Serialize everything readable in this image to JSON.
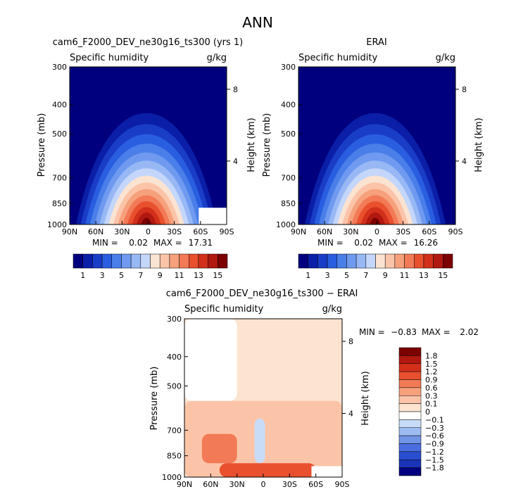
{
  "title": "ANN",
  "chart_data": [
    {
      "type": "heatmap",
      "title": "cam6_F2000_DEV_ne30g16_ts300 (yrs 1)",
      "left_label": "Specific humidity",
      "units": "g/kg",
      "ylabel": "Pressure (mb)",
      "y2label": "Height (km)",
      "x_ticks": [
        "90N",
        "60N",
        "30N",
        "0",
        "30S",
        "60S",
        "90S"
      ],
      "y_ticks": [
        "300",
        "400",
        "500",
        "700",
        "850",
        "1000"
      ],
      "y2_ticks": [
        "8",
        "4"
      ],
      "stats": {
        "min_label": "MIN =",
        "min": "0.02",
        "max_label": "MAX =",
        "max": "17.31"
      },
      "levels": [
        "1",
        "3",
        "5",
        "7",
        "9",
        "11",
        "13",
        "15"
      ],
      "colors": [
        "#00007e",
        "#0a1ea8",
        "#1a3dc8",
        "#2a5ee0",
        "#4a7ee8",
        "#6f9af0",
        "#98b8f5",
        "#c4d6fa",
        "#fbe3d2",
        "#fbc4a8",
        "#f6a07c",
        "#f27a56",
        "#e8502e",
        "#d2301a",
        "#b01810",
        "#7c0000"
      ],
      "peak": [
        2,
        15.5
      ]
    },
    {
      "type": "heatmap",
      "title": "ERAI",
      "left_label": "Specific humidity",
      "units": "g/kg",
      "ylabel": "Pressure (mb)",
      "y2label": "Height (km)",
      "x_ticks": [
        "90N",
        "60N",
        "30N",
        "0",
        "30S",
        "60S",
        "90S"
      ],
      "y_ticks": [
        "300",
        "400",
        "500",
        "700",
        "850",
        "1000"
      ],
      "y2_ticks": [
        "8",
        "4"
      ],
      "stats": {
        "min_label": "MIN =",
        "min": "0.02",
        "max_label": "MAX =",
        "max": "16.26"
      },
      "levels": [
        "1",
        "3",
        "5",
        "7",
        "9",
        "11",
        "13",
        "15"
      ],
      "colors": [
        "#00007e",
        "#0a1ea8",
        "#1a3dc8",
        "#2a5ee0",
        "#4a7ee8",
        "#6f9af0",
        "#98b8f5",
        "#c4d6fa",
        "#fbe3d2",
        "#fbc4a8",
        "#f6a07c",
        "#f27a56",
        "#e8502e",
        "#d2301a",
        "#b01810",
        "#7c0000"
      ],
      "peak": [
        2,
        15
      ]
    },
    {
      "type": "heatmap",
      "title": "cam6_F2000_DEV_ne30g16_ts300 − ERAI",
      "left_label": "Specific humidity",
      "units": "g/kg",
      "ylabel": "Pressure (mb)",
      "y2label": "Height (km)",
      "x_ticks": [
        "90N",
        "60N",
        "30N",
        "0",
        "30S",
        "60S",
        "90S"
      ],
      "y_ticks": [
        "300",
        "400",
        "500",
        "700",
        "850",
        "1000"
      ],
      "y2_ticks": [
        "8",
        "4"
      ],
      "stats": {
        "min_label": "MIN =",
        "min": "−0.83",
        "max_label": "MAX =",
        "max": "2.02"
      },
      "levels": [
        "1.8",
        "1.5",
        "1.2",
        "0.9",
        "0.6",
        "0.3",
        "0.1",
        "0",
        "−0.1",
        "−0.3",
        "−0.6",
        "−0.9",
        "−1.2",
        "−1.5",
        "−1.8"
      ],
      "colors": [
        "#7c0000",
        "#b01810",
        "#d2301a",
        "#e8502e",
        "#f27a56",
        "#f6a07c",
        "#fbc4a8",
        "#fce4d0",
        "#ffffff",
        "#c8dcf8",
        "#9cbcf2",
        "#7094e6",
        "#4a6ee0",
        "#2a4ed0",
        "#1a34b8",
        "#00007e"
      ],
      "regions": [
        {
          "name": "upper-pos",
          "lat_range": [
            -90,
            30
          ],
          "p_range": [
            300,
            560
          ],
          "value": 0.05
        },
        {
          "name": "mid-pos",
          "lat_range": [
            -90,
            90
          ],
          "p_range": [
            560,
            1000
          ],
          "value": 0.2
        },
        {
          "name": "south-upper-neg",
          "lat_range": [
            30,
            90
          ],
          "p_range": [
            300,
            560
          ],
          "value": -0.05
        },
        {
          "name": "eq-neg",
          "lat_range": [
            -2,
            10
          ],
          "p_range": [
            640,
            900
          ],
          "value": -0.3
        },
        {
          "name": "south-pos-core",
          "lat_range": [
            30,
            70
          ],
          "p_range": [
            720,
            900
          ],
          "value": 0.6
        },
        {
          "name": "surface-pos",
          "lat_range": [
            -60,
            50
          ],
          "p_range": [
            900,
            1000
          ],
          "value": 0.9
        }
      ]
    }
  ]
}
